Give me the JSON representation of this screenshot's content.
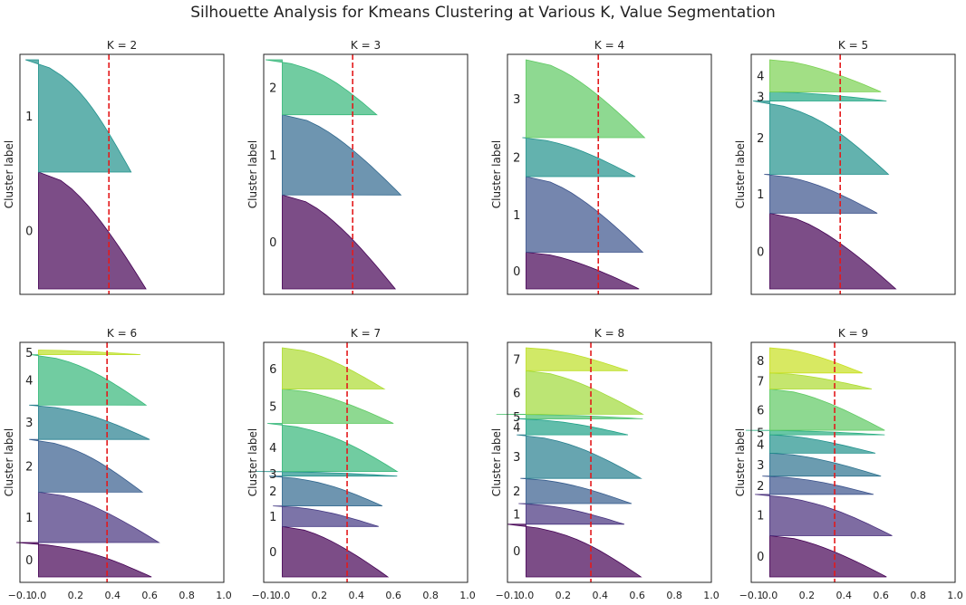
{
  "title": "Silhouette Analysis for Kmeans Clustering at Various K, Value Segmentation",
  "ylabel": "Cluster label",
  "x_ticks": [
    "−0.1",
    "0.0",
    "0.2",
    "0.4",
    "0.6",
    "0.8",
    "1.0"
  ],
  "x_tick_values": [
    -0.1,
    0.0,
    0.2,
    0.4,
    0.6,
    0.8,
    1.0
  ],
  "xlim": [
    -0.1,
    1.0
  ],
  "avg_line_color": "#e31a1c",
  "chart_data": [
    {
      "type": "area",
      "title": "K = 2",
      "k": 2,
      "avg_silhouette": 0.38,
      "series": [
        {
          "label": "0",
          "frac": 0.51,
          "max_score": 0.58,
          "min_score": 0.0,
          "color": "#440154"
        },
        {
          "label": "1",
          "frac": 0.49,
          "max_score": 0.5,
          "min_score": -0.07,
          "color": "#21918c"
        }
      ]
    },
    {
      "type": "area",
      "title": "K = 3",
      "k": 3,
      "avg_silhouette": 0.38,
      "series": [
        {
          "label": "0",
          "frac": 0.41,
          "max_score": 0.61,
          "min_score": 0.0,
          "color": "#440154"
        },
        {
          "label": "1",
          "frac": 0.35,
          "max_score": 0.64,
          "min_score": 0.0,
          "color": "#31688e"
        },
        {
          "label": "2",
          "frac": 0.24,
          "max_score": 0.51,
          "min_score": -0.09,
          "color": "#35b779"
        }
      ]
    },
    {
      "type": "area",
      "title": "K = 4",
      "k": 4,
      "avg_silhouette": 0.39,
      "series": [
        {
          "label": "0",
          "frac": 0.16,
          "max_score": 0.61,
          "min_score": 0.0,
          "color": "#440154"
        },
        {
          "label": "1",
          "frac": 0.33,
          "max_score": 0.63,
          "min_score": 0.0,
          "color": "#3b528b"
        },
        {
          "label": "2",
          "frac": 0.17,
          "max_score": 0.59,
          "min_score": -0.02,
          "color": "#21918c"
        },
        {
          "label": "3",
          "frac": 0.34,
          "max_score": 0.64,
          "min_score": 0.0,
          "color": "#5ec962"
        }
      ]
    },
    {
      "type": "area",
      "title": "K = 5",
      "k": 5,
      "avg_silhouette": 0.38,
      "series": [
        {
          "label": "0",
          "frac": 0.33,
          "max_score": 0.68,
          "min_score": 0.0,
          "color": "#440154"
        },
        {
          "label": "1",
          "frac": 0.17,
          "max_score": 0.58,
          "min_score": -0.03,
          "color": "#3b528b"
        },
        {
          "label": "2",
          "frac": 0.32,
          "max_score": 0.64,
          "min_score": -0.09,
          "color": "#21918c"
        },
        {
          "label": "3",
          "frac": 0.04,
          "max_score": 0.63,
          "min_score": 0.0,
          "color": "#21a685"
        },
        {
          "label": "4",
          "frac": 0.14,
          "max_score": 0.6,
          "min_score": 0.0,
          "color": "#7ad151"
        }
      ]
    },
    {
      "type": "area",
      "title": "K = 6",
      "k": 6,
      "avg_silhouette": 0.37,
      "series": [
        {
          "label": "0",
          "frac": 0.15,
          "max_score": 0.61,
          "min_score": -0.12,
          "color": "#440154"
        },
        {
          "label": "1",
          "frac": 0.22,
          "max_score": 0.65,
          "min_score": 0.0,
          "color": "#46327e"
        },
        {
          "label": "2",
          "frac": 0.23,
          "max_score": 0.56,
          "min_score": -0.05,
          "color": "#365c8d"
        },
        {
          "label": "3",
          "frac": 0.15,
          "max_score": 0.6,
          "min_score": -0.05,
          "color": "#277f8e"
        },
        {
          "label": "4",
          "frac": 0.22,
          "max_score": 0.58,
          "min_score": -0.04,
          "color": "#35b779"
        },
        {
          "label": "5",
          "frac": 0.02,
          "max_score": 0.55,
          "min_score": 0.0,
          "color": "#bddf26"
        }
      ]
    },
    {
      "type": "area",
      "title": "K = 7",
      "k": 7,
      "avg_silhouette": 0.35,
      "series": [
        {
          "label": "0",
          "frac": 0.22,
          "max_score": 0.57,
          "min_score": 0.0,
          "color": "#440154"
        },
        {
          "label": "1",
          "frac": 0.09,
          "max_score": 0.52,
          "min_score": -0.05,
          "color": "#443983"
        },
        {
          "label": "2",
          "frac": 0.13,
          "max_score": 0.54,
          "min_score": -0.07,
          "color": "#31688e"
        },
        {
          "label": "3",
          "frac": 0.02,
          "max_score": 0.62,
          "min_score": -0.14,
          "color": "#21918c"
        },
        {
          "label": "4",
          "frac": 0.21,
          "max_score": 0.62,
          "min_score": -0.08,
          "color": "#35b779"
        },
        {
          "label": "5",
          "frac": 0.15,
          "max_score": 0.6,
          "min_score": 0.0,
          "color": "#5ec962"
        },
        {
          "label": "6",
          "frac": 0.18,
          "max_score": 0.55,
          "min_score": 0.0,
          "color": "#addc30"
        }
      ]
    },
    {
      "type": "area",
      "title": "K = 8",
      "k": 8,
      "avg_silhouette": 0.35,
      "series": [
        {
          "label": "0",
          "frac": 0.23,
          "max_score": 0.62,
          "min_score": -0.1,
          "color": "#440154"
        },
        {
          "label": "1",
          "frac": 0.09,
          "max_score": 0.53,
          "min_score": -0.04,
          "color": "#46327e"
        },
        {
          "label": "2",
          "frac": 0.11,
          "max_score": 0.57,
          "min_score": -0.03,
          "color": "#365c8d"
        },
        {
          "label": "3",
          "frac": 0.19,
          "max_score": 0.62,
          "min_score": -0.05,
          "color": "#277f8e"
        },
        {
          "label": "4",
          "frac": 0.07,
          "max_score": 0.55,
          "min_score": -0.05,
          "color": "#1fa187"
        },
        {
          "label": "5",
          "frac": 0.02,
          "max_score": 0.63,
          "min_score": -0.16,
          "color": "#4ac16d"
        },
        {
          "label": "6",
          "frac": 0.19,
          "max_score": 0.63,
          "min_score": 0.0,
          "color": "#a0da39"
        },
        {
          "label": "7",
          "frac": 0.1,
          "max_score": 0.55,
          "min_score": 0.0,
          "color": "#bddf26"
        }
      ]
    },
    {
      "type": "area",
      "title": "K = 9",
      "k": 9,
      "avg_silhouette": 0.35,
      "series": [
        {
          "label": "0",
          "frac": 0.18,
          "max_score": 0.63,
          "min_score": 0.0,
          "color": "#440154"
        },
        {
          "label": "1",
          "frac": 0.18,
          "max_score": 0.66,
          "min_score": -0.08,
          "color": "#472d7b"
        },
        {
          "label": "2",
          "frac": 0.08,
          "max_score": 0.56,
          "min_score": -0.04,
          "color": "#3b528b"
        },
        {
          "label": "3",
          "frac": 0.1,
          "max_score": 0.6,
          "min_score": 0.0,
          "color": "#2c728e"
        },
        {
          "label": "4",
          "frac": 0.08,
          "max_score": 0.57,
          "min_score": 0.0,
          "color": "#21918c"
        },
        {
          "label": "5",
          "frac": 0.02,
          "max_score": 0.62,
          "min_score": -0.13,
          "color": "#28ae80"
        },
        {
          "label": "6",
          "frac": 0.18,
          "max_score": 0.62,
          "min_score": 0.0,
          "color": "#5ec962"
        },
        {
          "label": "7",
          "frac": 0.07,
          "max_score": 0.55,
          "min_score": 0.0,
          "color": "#addc30"
        },
        {
          "label": "8",
          "frac": 0.11,
          "max_score": 0.5,
          "min_score": 0.0,
          "color": "#c8e020"
        }
      ]
    }
  ]
}
